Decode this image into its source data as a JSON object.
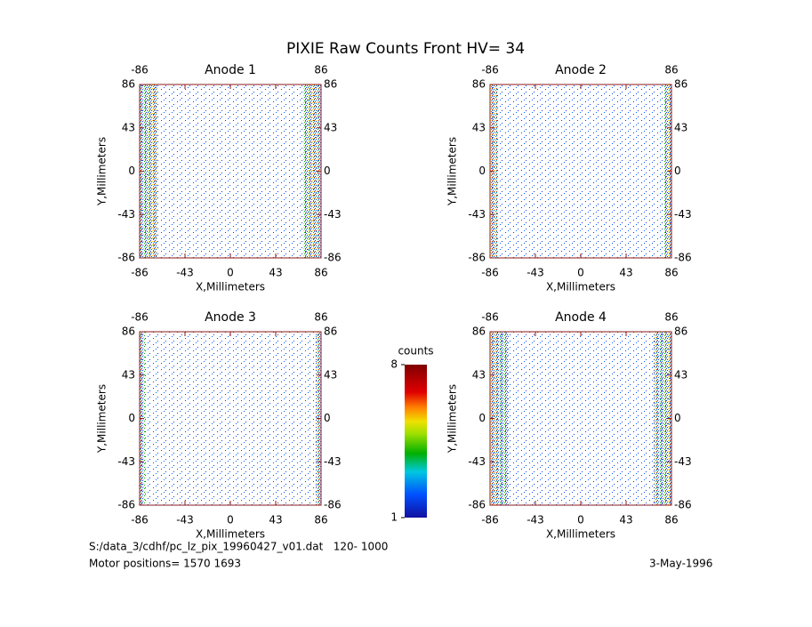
{
  "title": "PIXIE Raw Counts Front HV= 34",
  "footer": {
    "file": "S:/data_3/cdhf/pc_lz_pix_19960427_v01.dat   120- 1000",
    "motor": "Motor positions= 1570 1693",
    "date": "3-May-1996"
  },
  "chart_data": [
    {
      "type": "image",
      "title": "Anode 1",
      "xlabel": "X,Millimeters",
      "ylabel": "Y,Millimeters",
      "xlim": [
        -86,
        86
      ],
      "ylim": [
        -86,
        86
      ],
      "xticks": [
        -86,
        -43,
        0,
        43,
        86
      ],
      "yticks": [
        -86,
        -43,
        0,
        43,
        86
      ],
      "axis_color": "#8b1a1a"
    },
    {
      "type": "image",
      "title": "Anode 2",
      "xlabel": "X,Millimeters",
      "ylabel": "Y,Millimeters",
      "xlim": [
        -86,
        86
      ],
      "ylim": [
        -86,
        86
      ],
      "xticks": [
        -86,
        -43,
        0,
        43,
        86
      ],
      "yticks": [
        -86,
        -43,
        0,
        43,
        86
      ],
      "axis_color": "#8b1a1a"
    },
    {
      "type": "image",
      "title": "Anode 3",
      "xlabel": "X,Millimeters",
      "ylabel": "Y,Millimeters",
      "xlim": [
        -86,
        86
      ],
      "ylim": [
        -86,
        86
      ],
      "xticks": [
        -86,
        -43,
        0,
        43,
        86
      ],
      "yticks": [
        -86,
        -43,
        0,
        43,
        86
      ],
      "axis_color": "#8b1a1a"
    },
    {
      "type": "image",
      "title": "Anode 4",
      "xlabel": "X,Millimeters",
      "ylabel": "Y,Millimeters",
      "xlim": [
        -86,
        86
      ],
      "ylim": [
        -86,
        86
      ],
      "xticks": [
        -86,
        -43,
        0,
        43,
        86
      ],
      "yticks": [
        -86,
        -43,
        0,
        43,
        86
      ],
      "axis_color": "#8b1a1a"
    },
    {
      "type": "colorbar",
      "title": "counts",
      "ylim": [
        1,
        8
      ],
      "yticks": [
        1,
        8
      ]
    }
  ]
}
